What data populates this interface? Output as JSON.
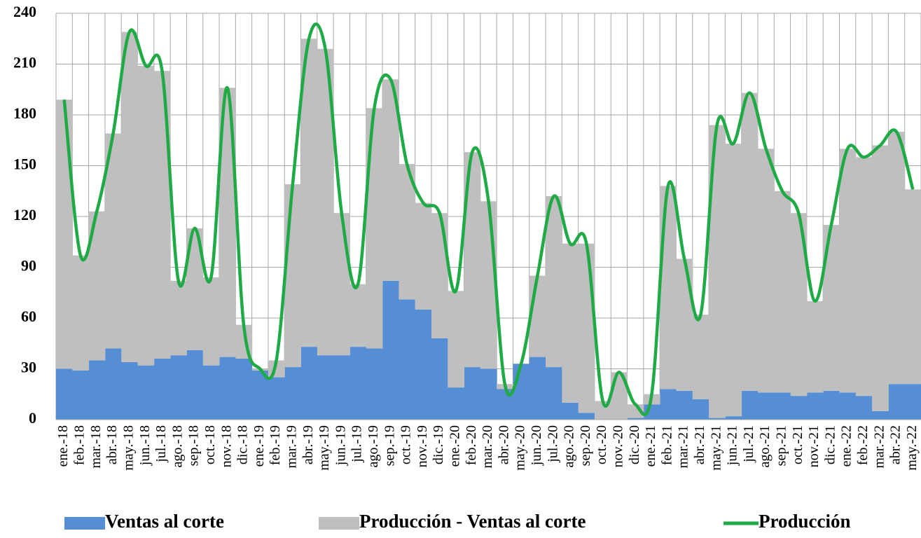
{
  "chart_data": {
    "type": "stacked_bar_line",
    "categories": [
      "ene.-18",
      "feb.-18",
      "mar.-18",
      "abr.-18",
      "may.-18",
      "jun.-18",
      "jul.-18",
      "ago.-18",
      "sep.-18",
      "oct.-18",
      "nov.-18",
      "dic.-18",
      "ene.-19",
      "feb.-19",
      "mar.-19",
      "abr.-19",
      "may.-19",
      "jun.-19",
      "jul.-19",
      "ago.-19",
      "sep.-19",
      "oct.-19",
      "nov.-19",
      "dic.-19",
      "ene.-20",
      "feb.-20",
      "mar.-20",
      "abr.-20",
      "may.-20",
      "jun.-20",
      "jul.-20",
      "ago.-20",
      "sep.-20",
      "oct.-20",
      "nov.-20",
      "dic.-20",
      "ene.-21",
      "feb.-21",
      "mar.-21",
      "abr.-21",
      "may.-21",
      "jun.-21",
      "jul.-21",
      "ago.-21",
      "sep.-21",
      "oct.-21",
      "nov.-21",
      "dic.-21",
      "ene.-22",
      "feb.-22",
      "mar.-22",
      "abr.-22",
      "may.-22"
    ],
    "series": [
      {
        "name": "Ventas al corte",
        "color": "#558ed5",
        "kind": "bar",
        "values": [
          30,
          29,
          35,
          42,
          34,
          32,
          36,
          38,
          41,
          32,
          37,
          36,
          29,
          25,
          31,
          43,
          38,
          38,
          43,
          42,
          82,
          71,
          65,
          48,
          19,
          31,
          30,
          18,
          33,
          37,
          31,
          10,
          4,
          0,
          0,
          1,
          9,
          18,
          17,
          12,
          1,
          2,
          17,
          16,
          16,
          14,
          16,
          17,
          16,
          14,
          5,
          21,
          21
        ]
      },
      {
        "name": "Producción - Ventas al corte",
        "color": "#bfbfbf",
        "kind": "bar",
        "values": [
          159,
          68,
          88,
          127,
          195,
          177,
          170,
          44,
          72,
          52,
          159,
          20,
          1,
          10,
          108,
          182,
          181,
          84,
          37,
          142,
          119,
          80,
          63,
          74,
          57,
          127,
          99,
          3,
          0,
          48,
          101,
          94,
          100,
          11,
          28,
          8,
          6,
          120,
          78,
          50,
          173,
          161,
          176,
          144,
          119,
          108,
          54,
          98,
          144,
          141,
          157,
          149,
          115
        ]
      },
      {
        "name": "Producción",
        "color": "#1faa45",
        "kind": "line",
        "values": [
          189,
          97,
          123,
          169,
          229,
          209,
          206,
          82,
          113,
          84,
          196,
          56,
          30,
          35,
          139,
          225,
          219,
          122,
          80,
          184,
          201,
          151,
          128,
          122,
          76,
          158,
          129,
          21,
          33,
          85,
          132,
          104,
          104,
          11,
          28,
          9,
          15,
          138,
          95,
          62,
          174,
          163,
          193,
          160,
          135,
          122,
          70,
          115,
          160,
          155,
          162,
          170,
          136
        ]
      }
    ],
    "ylim": [
      0,
      240
    ],
    "yticks": [
      0,
      30,
      60,
      90,
      120,
      150,
      180,
      210,
      240
    ],
    "grid": true,
    "legend": "bottom"
  }
}
